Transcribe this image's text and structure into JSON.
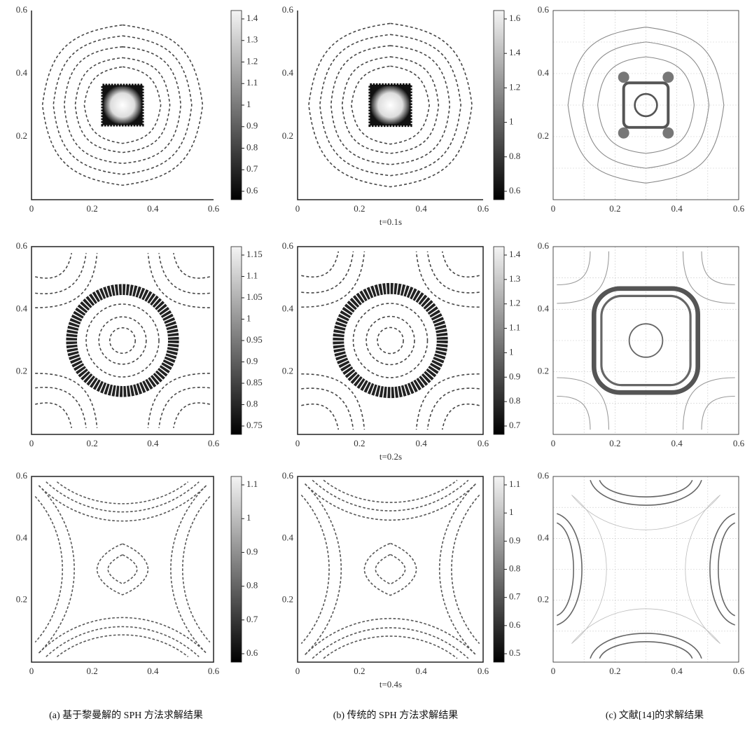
{
  "rows": [
    {
      "time": "t=0.1s",
      "panels": [
        {
          "y_labels": [
            "0.6",
            "0.4",
            "0.2"
          ],
          "x_labels": [
            "0",
            "0.2",
            "0.4",
            "0.6"
          ],
          "colorbar": [
            "1.4",
            "1.3",
            "1.2",
            "1.1",
            "1",
            "0.9",
            "0.8",
            "0.7",
            "0.6"
          ]
        },
        {
          "y_labels": [
            "0.6",
            "0.4",
            "0.2"
          ],
          "x_labels": [
            "0",
            "0.2",
            "0.4",
            "0.6"
          ],
          "colorbar": [
            "1.6",
            "1.4",
            "1.2",
            "1",
            "0.8",
            "0.6"
          ]
        },
        {
          "y_labels": [
            "0.6",
            "0.4",
            "0.2"
          ],
          "x_labels": [
            "0",
            "0.2",
            "0.4",
            "0.6"
          ],
          "colorbar": []
        }
      ]
    },
    {
      "time": "t=0.2s",
      "panels": [
        {
          "y_labels": [
            "0.6",
            "0.4",
            "0.2"
          ],
          "x_labels": [
            "0",
            "0.2",
            "0.4",
            "0.6"
          ],
          "colorbar": [
            "1.15",
            "1.1",
            "1.05",
            "1",
            "0.95",
            "0.9",
            "0.85",
            "0.8",
            "0.75"
          ]
        },
        {
          "y_labels": [
            "0.6",
            "0.4",
            "0.2"
          ],
          "x_labels": [
            "0",
            "0.2",
            "0.4",
            "0.6"
          ],
          "colorbar": [
            "1.4",
            "1.3",
            "1.2",
            "1.1",
            "1",
            "0.9",
            "0.8",
            "0.7"
          ]
        },
        {
          "y_labels": [
            "0.6",
            "0.4",
            "0.2"
          ],
          "x_labels": [
            "0",
            "0.2",
            "0.4",
            "0.6"
          ],
          "colorbar": []
        }
      ]
    },
    {
      "time": "t=0.4s",
      "panels": [
        {
          "y_labels": [
            "0.6",
            "0.4",
            "0.2"
          ],
          "x_labels": [
            "0",
            "0.2",
            "0.4",
            "0.6"
          ],
          "colorbar": [
            "1.1",
            "1",
            "0.9",
            "0.8",
            "0.7",
            "0.6"
          ]
        },
        {
          "y_labels": [
            "0.6",
            "0.4",
            "0.2"
          ],
          "x_labels": [
            "0",
            "0.2",
            "0.4",
            "0.6"
          ],
          "colorbar": [
            "1.1",
            "1",
            "0.9",
            "0.8",
            "0.7",
            "0.6",
            "0.5"
          ]
        },
        {
          "y_labels": [
            "0.6",
            "0.4",
            "0.2"
          ],
          "x_labels": [
            "0",
            "0.2",
            "0.4",
            "0.6"
          ],
          "colorbar": []
        }
      ]
    }
  ],
  "captions": [
    "(a) 基于黎曼解的 SPH 方法求解结果",
    "(b) 传统的 SPH 方法求解结果",
    "(c) 文献[14]的求解结果"
  ]
}
